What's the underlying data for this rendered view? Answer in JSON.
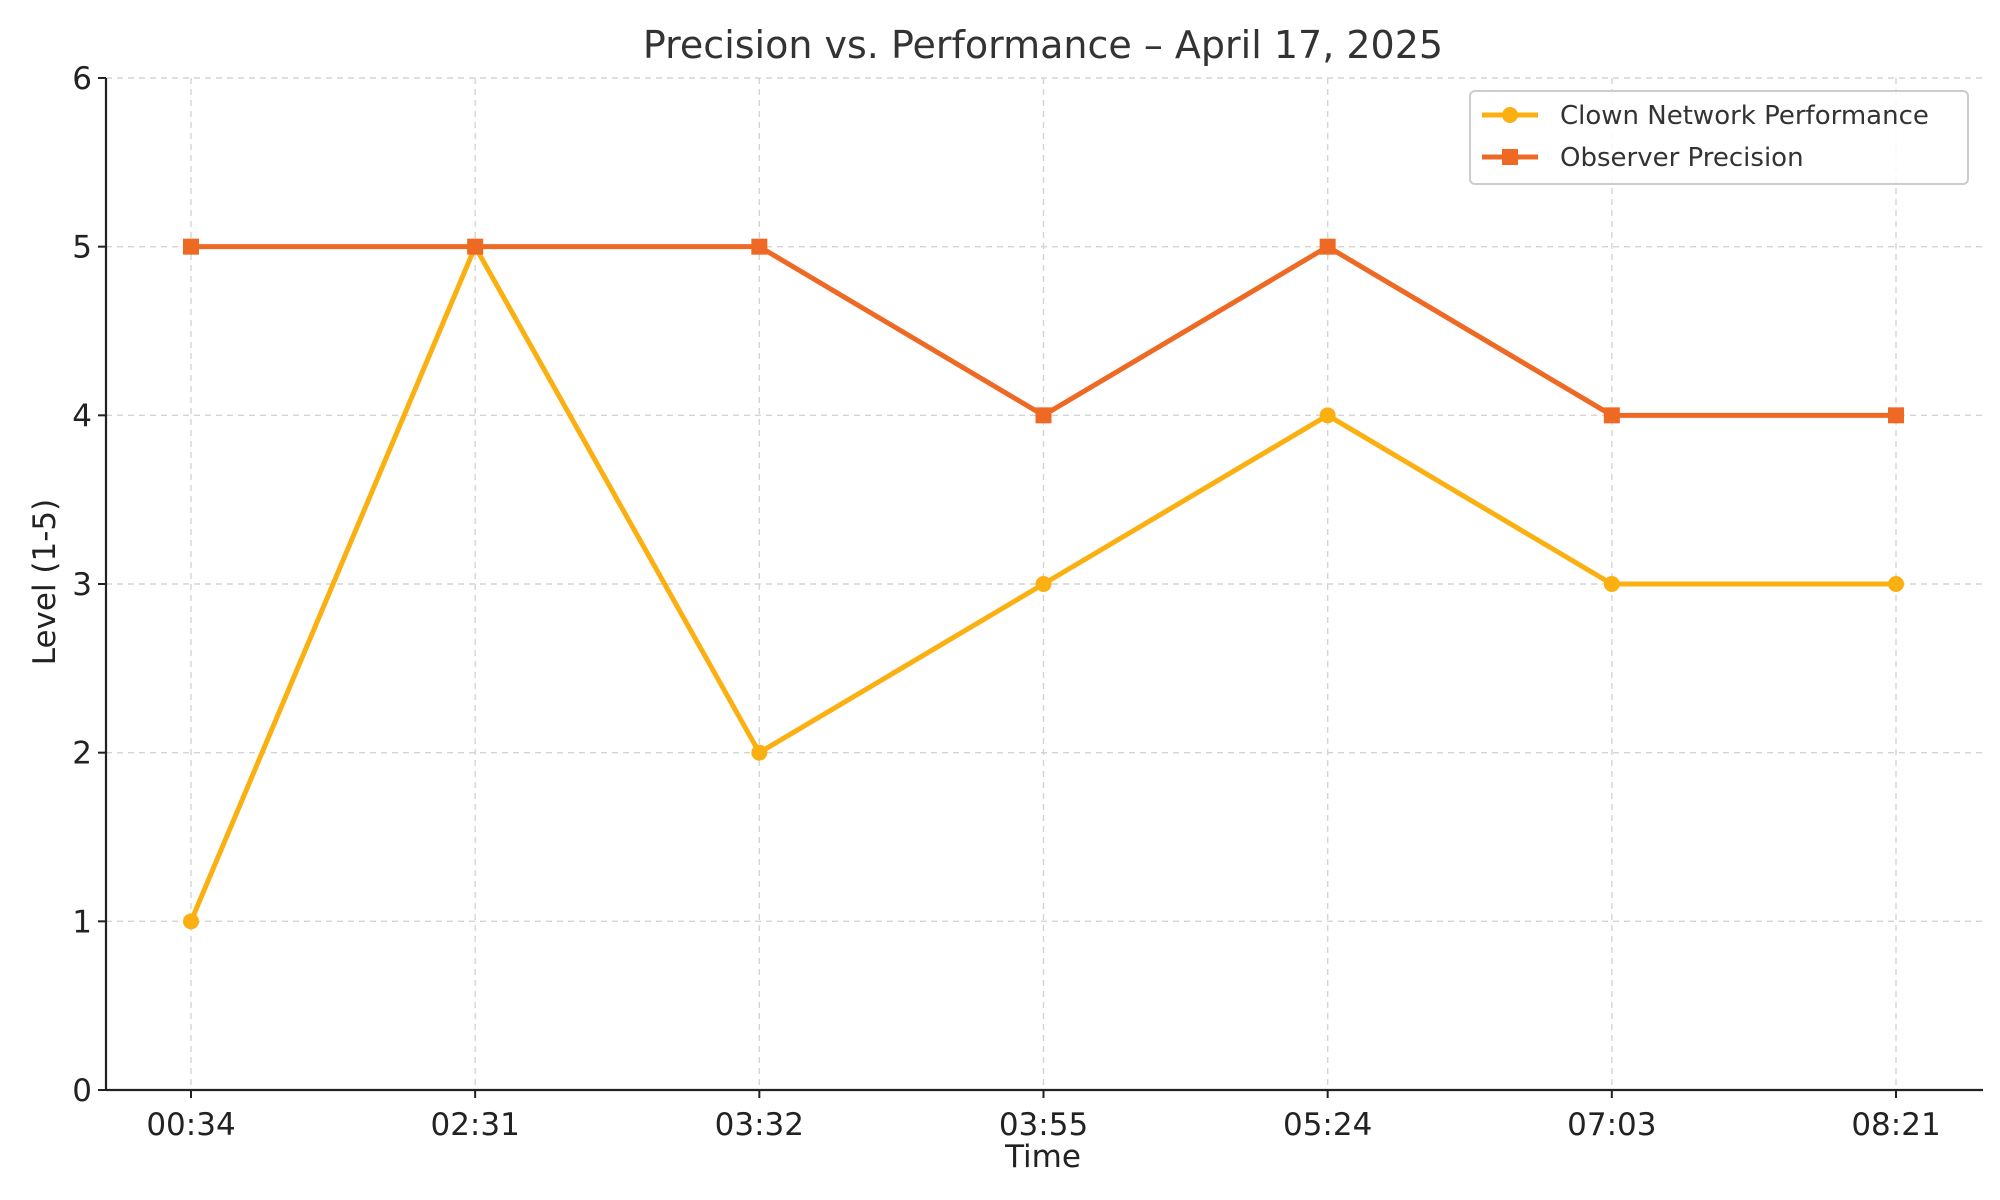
{
  "chart_data": {
    "type": "line",
    "title": "Precision vs. Performance – April 17, 2025",
    "xlabel": "Time",
    "ylabel": "Level (1-5)",
    "categories": [
      "00:34",
      "02:31",
      "03:32",
      "03:55",
      "05:24",
      "07:03",
      "08:21"
    ],
    "ylim": [
      0,
      6
    ],
    "yticks": [
      0,
      1,
      2,
      3,
      4,
      5,
      6
    ],
    "grid": true,
    "legend_position": "top-right",
    "series": [
      {
        "name": "Clown Network Performance",
        "values": [
          1,
          5,
          2,
          3,
          4,
          3,
          3
        ],
        "color": "#FBB012",
        "marker": "circle"
      },
      {
        "name": "Observer Precision",
        "values": [
          5,
          5,
          5,
          4,
          5,
          4,
          4
        ],
        "color": "#EE6A24",
        "marker": "square"
      }
    ]
  }
}
